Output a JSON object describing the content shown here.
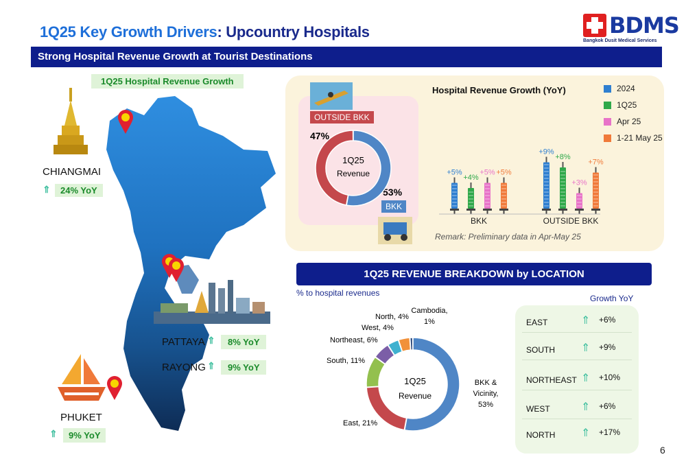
{
  "title": {
    "prefix": "1Q25",
    "mid": " Key Growth Drivers",
    "rest": ": Upcountry Hospitals"
  },
  "subtitle": "Strong Hospital Revenue Growth at Tourist Destinations",
  "logo": {
    "text": "BDMS",
    "sub": "Bangkok Dusit Medical Services"
  },
  "map_label": "1Q25 Hospital Revenue Growth",
  "cities": [
    {
      "name": "CHIANGMAI",
      "growth": "24% YoY"
    },
    {
      "name": "PATTAYA",
      "growth": "8% YoY"
    },
    {
      "name": "RAYONG",
      "growth": "9% YoY"
    },
    {
      "name": "PHUKET",
      "growth": "9% YoY"
    }
  ],
  "top_panel": {
    "outside_tag": "OUTSIDE BKK",
    "bkk_tag": "BKK",
    "pct_outside": "47%",
    "pct_bkk": "53%",
    "donut_center": "1Q25",
    "donut_sub": "Revenue",
    "chart_title": "Hospital Revenue Growth (YoY)",
    "remark": "Remark: Preliminary data in Apr-May 25",
    "legend": [
      {
        "label": "2024",
        "color": "#2f7fd0"
      },
      {
        "label": "1Q25",
        "color": "#2fa84a"
      },
      {
        "label": "Apr 25",
        "color": "#e873c8"
      },
      {
        "label": "1-21 May 25",
        "color": "#f07a3a"
      }
    ]
  },
  "chart_data": [
    {
      "type": "bar",
      "title": "Hospital Revenue Growth (YoY)",
      "categories": [
        "BKK",
        "OUTSIDE BKK"
      ],
      "series": [
        {
          "name": "2024",
          "values": [
            5,
            9
          ],
          "labels": [
            "+5%",
            "+9%"
          ],
          "color": "#2f7fd0"
        },
        {
          "name": "1Q25",
          "values": [
            4,
            8
          ],
          "labels": [
            "+4%",
            "+8%"
          ],
          "color": "#2fa84a"
        },
        {
          "name": "Apr 25",
          "values": [
            5,
            3
          ],
          "labels": [
            "+5%",
            "+3%"
          ],
          "color": "#e873c8"
        },
        {
          "name": "1-21 May 25",
          "values": [
            5,
            7
          ],
          "labels": [
            "+5%",
            "+7%"
          ],
          "color": "#f07a3a"
        }
      ]
    },
    {
      "type": "pie",
      "title": "1Q25 Revenue",
      "slices": [
        {
          "label": "OUTSIDE BKK",
          "value": 47,
          "color": "#c4484c"
        },
        {
          "label": "BKK",
          "value": 53,
          "color": "#4f86c6"
        }
      ]
    },
    {
      "type": "pie",
      "title": "1Q25 REVENUE BREAKDOWN by LOCATION",
      "slices": [
        {
          "label": "BKK & Vicinity, 53%",
          "value": 53,
          "color": "#4f86c6"
        },
        {
          "label": "East, 21%",
          "value": 21,
          "color": "#c4484c"
        },
        {
          "label": "South, 11%",
          "value": 11,
          "color": "#93c04e"
        },
        {
          "label": "Northeast, 6%",
          "value": 6,
          "color": "#7b5ea7"
        },
        {
          "label": "West, 4%",
          "value": 4,
          "color": "#3fb1cf"
        },
        {
          "label": "North, 4%",
          "value": 4,
          "color": "#f1913a"
        },
        {
          "label": "Cambodia, 1%",
          "value": 1,
          "color": "#1f3d73"
        }
      ]
    }
  ],
  "breakdown": {
    "header": "1Q25 REVENUE BREAKDOWN by LOCATION",
    "pct_note": "% to hospital revenues",
    "center": "1Q25",
    "center_sub": "Revenue",
    "growth_header": "Growth YoY",
    "growth_rows": [
      {
        "region": "EAST",
        "value": "+6%"
      },
      {
        "region": "SOUTH",
        "value": "+9%"
      },
      {
        "region": "NORTHEAST",
        "value": "+10%"
      },
      {
        "region": "WEST",
        "value": "+6%"
      },
      {
        "region": "NORTH",
        "value": "+17%"
      }
    ]
  },
  "page_number": "6"
}
